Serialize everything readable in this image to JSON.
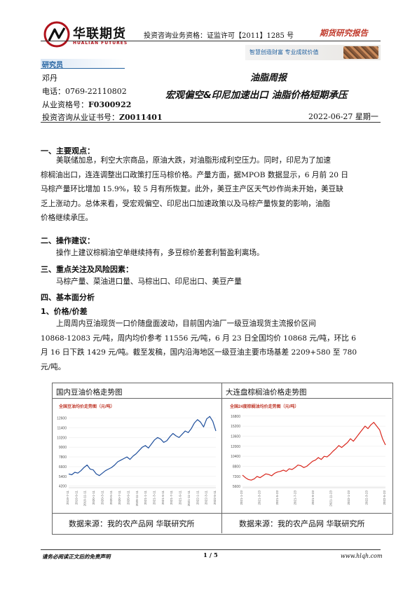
{
  "header": {
    "brand_cn": "华联期货",
    "brand_en": "HUALIAN FUTURES",
    "license": "投资咨询业务资格：证监许可【2011】1285 号",
    "report_type": "期货研究报告",
    "slogan": "智慧创造财富 专业成就价值"
  },
  "analyst": {
    "section_title": "研究员",
    "name": "邓丹",
    "phone": "电话：0769-22110802",
    "qual_label": "从业资格号：",
    "qual_value": "F0300922",
    "advisor_label": "投资咨询从业证书号：",
    "advisor_value": "Z0011401"
  },
  "report": {
    "title": "油脂周报",
    "subtitle": "宏观偏空&印尼加速出口 油脂价格短期承压",
    "date": "2022-06-27 星期一"
  },
  "sections": {
    "s1_heading": "一、主要观点：",
    "s1_lines": [
      "美联储加息，利空大宗商品，原油大跌，对油脂形成利空压力。同时，印尼为了加速",
      "棕榈油出口，连连调整出口政策打压马棕价格。产量方面，据MPOB 数据显示，6 月前 20 日",
      "马棕产量环比增加 15.9%，较 5 月有所恢复。此外，美豆主产区天气炒作尚未开始，美豆缺",
      "乏上涨动力。总体来看，受宏观偏空、印尼出口加速政策以及马棕产量恢复的影响，油脂",
      "价格继续承压。"
    ],
    "s2_heading": "二、操作建议：",
    "s2_text": "操作上建议棕榈油空单继续持有，多豆棕价差套利暂盈利离场。",
    "s3_heading": "三、重点关注及风险因素：",
    "s3_text": "马棕产量、菜油进口量、马棕出口、印尼出口、美豆产量",
    "s4_heading": "四、基本面分析",
    "s4_sub": "1、价格/价差",
    "s4_lines": [
      "上周周内豆油现货一口价随盘面波动，目前国内油厂一级豆油现货主流报价区间",
      "10868-12083 元/吨，周内均价参考 11556 元/吨，6 月 23 日全国均价 10868 元/吨，环比 6",
      "月 16 日下跌 1429 元/吨。截至发稿，国内沿海地区一级豆油主要市场基差 2209+580 至 780",
      "元/吨。"
    ]
  },
  "charts": {
    "left_caption": "国内豆油价格走势图",
    "right_caption": "大连盘棕榈油价格走势图",
    "left_source": "数据来源：我的农产品网 华联研究所",
    "right_source": "数据来源：我的农产品网 华联研究所",
    "left_inner_title": "全国豆油均价走势图（元/吨）",
    "right_inner_title": "全国24度棕榈油均价走势图（元/吨）",
    "line_color": "#1f4f9c",
    "right_line_color": "#d9261c"
  },
  "chart_data": [
    {
      "type": "line",
      "title": "全国豆油均价走势图（元/吨）",
      "ylim": [
        4000,
        13000
      ],
      "yticks": [
        "12600",
        "11400",
        "10200",
        "9000",
        "7800",
        "6600",
        "5400",
        "4200"
      ],
      "xticks": [
        "2019-7-11",
        "2019-9-11",
        "2019-11-11",
        "2020-1-11",
        "2020-3-11",
        "2020-5-11",
        "2020-7-11",
        "2020-9-11",
        "2020-11-11",
        "2021-1-11",
        "2021-3-11",
        "2021-5-11",
        "2021-7-11",
        "2021-9-11",
        "2021-11-11",
        "2022-1-11",
        "2022-3-11",
        "2022-5-11"
      ],
      "values": [
        5700,
        5600,
        5900,
        5800,
        6100,
        6500,
        6800,
        6300,
        6200,
        5700,
        5500,
        5800,
        6100,
        6300,
        6500,
        6800,
        7200,
        7400,
        7600,
        7800,
        7500,
        7900,
        8200,
        8600,
        9000,
        9200,
        8900,
        9400,
        9900,
        10200,
        10000,
        9600,
        9800,
        10300,
        10700,
        10400,
        10200,
        10600,
        11000,
        10800,
        11300,
        12000,
        12400,
        12100,
        11500,
        12500,
        12800,
        12200,
        11000
      ]
    },
    {
      "type": "line",
      "title": "全国24度棕榈油均价走势图（元/吨）",
      "ylim": [
        5400,
        17000
      ],
      "yticks": [
        "16800",
        "15200",
        "13600",
        "12000",
        "10400",
        "8800",
        "7200",
        "5600"
      ],
      "xticks": [
        "2021-1-23",
        "2021-3-23",
        "2021-5-23",
        "2021-7-23",
        "2021-9-23",
        "2021-11-23",
        "2022-1-23",
        "2022-3-23",
        "2022-5-23"
      ],
      "values": [
        7400,
        7000,
        6700,
        6600,
        6800,
        7200,
        7000,
        7300,
        7600,
        7500,
        7300,
        7700,
        7900,
        8000,
        8200,
        8000,
        8400,
        8300,
        8600,
        9000,
        8900,
        8600,
        8800,
        9200,
        9600,
        9800,
        10200,
        9900,
        10400,
        10300,
        10700,
        11200,
        11600,
        12100,
        11800,
        12200,
        12600,
        13200,
        12800,
        13400,
        14000,
        14600,
        15200,
        14800,
        15400,
        15800,
        15200,
        14600,
        13200,
        12200
      ]
    }
  ],
  "footer": {
    "disclaimer": "请务必阅读正文后的免责声明",
    "page": "1 / 5",
    "url": "www.hlqh.com"
  }
}
